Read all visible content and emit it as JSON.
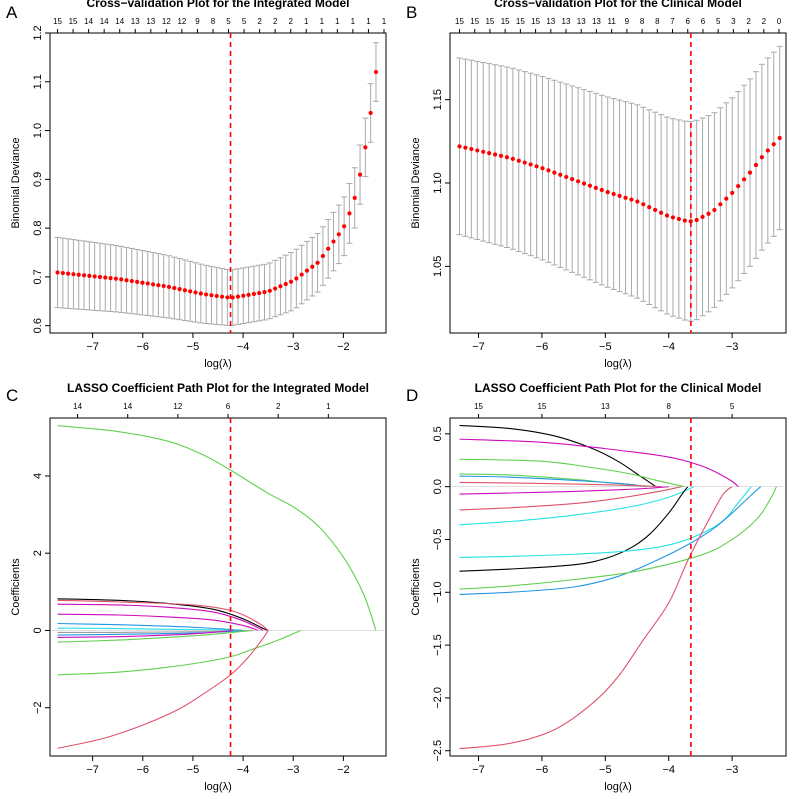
{
  "chart_data": [
    {
      "id": "A",
      "type": "line",
      "panel_label": "A",
      "title": "Cross−validation Plot for the Integrated Model",
      "xlabel": "log(λ)",
      "ylabel": "Binomial Deviance",
      "xlim": [
        -7.85,
        -1.15
      ],
      "ylim": [
        0.585,
        1.2
      ],
      "xticks": [
        -7,
        -6,
        -5,
        -4,
        -3,
        -2
      ],
      "xtick_labels": [
        "−7",
        "−6",
        "−5",
        "−4",
        "−3",
        "−2"
      ],
      "yticks": [
        0.6,
        0.7,
        0.8,
        0.9,
        1.0,
        1.1,
        1.2
      ],
      "ytick_labels": [
        "0.6",
        "0.7",
        "0.8",
        "0.9",
        "1.0",
        "1.1",
        "1.2"
      ],
      "top_axis_labels": [
        "15",
        "15",
        "14",
        "14",
        "14",
        "13",
        "13",
        "12",
        "12",
        "9",
        "8",
        "5",
        "5",
        "2",
        "2",
        "2",
        "1",
        "1",
        "1",
        "1",
        "1",
        "1"
      ],
      "top_axis_x": [
        -7.7,
        -7.39,
        -7.08,
        -6.77,
        -6.46,
        -6.15,
        -5.84,
        -5.53,
        -5.22,
        -4.91,
        -4.6,
        -4.29,
        -3.98,
        -3.67,
        -3.36,
        -3.05,
        -2.74,
        -2.43,
        -2.12,
        -1.81,
        -1.5,
        -1.19
      ],
      "vline": -4.25,
      "series": [
        {
          "name": "Binomial Deviance",
          "x_start": -7.7,
          "x_end": -1.35,
          "n": 61,
          "knots_x": [
            -7.7,
            -6.5,
            -5.5,
            -4.8,
            -4.25,
            -3.5,
            -3.0,
            -2.5,
            -2.0,
            -1.8,
            -1.6,
            -1.45,
            -1.35
          ],
          "knots_y": [
            0.709,
            0.696,
            0.68,
            0.665,
            0.657,
            0.67,
            0.692,
            0.73,
            0.8,
            0.85,
            0.94,
            1.04,
            1.12
          ],
          "err_knots_x": [
            -7.7,
            -6.5,
            -5.5,
            -4.8,
            -4.25,
            -3.5,
            -3.0,
            -2.5,
            -2.0,
            -1.8,
            -1.6,
            -1.45,
            -1.35
          ],
          "err_knots_v": [
            0.072,
            0.068,
            0.064,
            0.06,
            0.057,
            0.057,
            0.06,
            0.06,
            0.06,
            0.062,
            0.06,
            0.06,
            0.06
          ]
        }
      ]
    },
    {
      "id": "B",
      "type": "line",
      "panel_label": "B",
      "title": "Cross−validation Plot for the Clinical Model",
      "xlabel": "log(λ)",
      "ylabel": "Binomial Deviance",
      "xlim": [
        -7.45,
        -2.15
      ],
      "ylim": [
        1.01,
        1.19
      ],
      "xticks": [
        -7,
        -6,
        -5,
        -4,
        -3
      ],
      "xtick_labels": [
        "−7",
        "−6",
        "−5",
        "−4",
        "−3"
      ],
      "yticks": [
        1.05,
        1.1,
        1.15
      ],
      "ytick_labels": [
        "1.05",
        "1.10",
        "1.15"
      ],
      "top_axis_labels": [
        "15",
        "15",
        "15",
        "15",
        "15",
        "15",
        "13",
        "13",
        "13",
        "13",
        "11",
        "9",
        "8",
        "8",
        "7",
        "6",
        "6",
        "5",
        "3",
        "2",
        "2",
        "0"
      ],
      "top_axis_x": [
        -7.3,
        -7.06,
        -6.82,
        -6.58,
        -6.34,
        -6.1,
        -5.86,
        -5.62,
        -5.38,
        -5.14,
        -4.9,
        -4.66,
        -4.42,
        -4.18,
        -3.94,
        -3.7,
        -3.46,
        -3.22,
        -2.98,
        -2.74,
        -2.5,
        -2.26
      ],
      "vline": -3.65,
      "series": [
        {
          "name": "Binomial Deviance",
          "x_start": -7.3,
          "x_end": -2.25,
          "n": 55,
          "knots_x": [
            -7.3,
            -6.5,
            -6.0,
            -5.5,
            -5.0,
            -4.5,
            -4.0,
            -3.7,
            -3.6,
            -3.3,
            -3.0,
            -2.7,
            -2.5,
            -2.25
          ],
          "knots_y": [
            1.122,
            1.115,
            1.109,
            1.102,
            1.095,
            1.089,
            1.08,
            1.077,
            1.077,
            1.083,
            1.094,
            1.107,
            1.117,
            1.127
          ],
          "err_knots_x": [
            -7.3,
            -6.0,
            -4.5,
            -3.6,
            -3.0,
            -2.25
          ],
          "err_knots_v": [
            0.053,
            0.055,
            0.058,
            0.06,
            0.057,
            0.055
          ]
        }
      ]
    },
    {
      "id": "C",
      "type": "line",
      "panel_label": "C",
      "title": "LASSO Coefficient Path Plot for the Integrated Model",
      "xlabel": "log(λ)",
      "ylabel": "Coefficients",
      "xlim": [
        -7.85,
        -1.15
      ],
      "ylim": [
        -3.25,
        5.5
      ],
      "xticks": [
        -7,
        -6,
        -5,
        -4,
        -3,
        -2
      ],
      "xtick_labels": [
        "−7",
        "−6",
        "−5",
        "−4",
        "−3",
        "−2"
      ],
      "yticks": [
        -2,
        0,
        2,
        4
      ],
      "ytick_labels": [
        "−2",
        "0",
        "2",
        "4"
      ],
      "top_axis_labels": [
        "14",
        "14",
        "12",
        "6",
        "2",
        "1"
      ],
      "top_axis_x": [
        -7.3,
        -6.3,
        -5.3,
        -4.3,
        -3.3,
        -2.3
      ],
      "vline": -4.25,
      "series": [
        {
          "name": "path-1",
          "color": "#61D04F",
          "x": [
            -7.7,
            -6.5,
            -5.5,
            -4.8,
            -4.25,
            -3.5,
            -3.0,
            -2.5,
            -2.0,
            -1.6,
            -1.35
          ],
          "y": [
            5.3,
            5.15,
            4.9,
            4.55,
            4.15,
            3.55,
            3.2,
            2.7,
            1.9,
            0.95,
            0.0
          ]
        },
        {
          "name": "path-2",
          "color": "#000000",
          "x": [
            -7.7,
            -6.5,
            -5.5,
            -4.6,
            -4.0,
            -3.6,
            -3.5
          ],
          "y": [
            0.82,
            0.78,
            0.7,
            0.55,
            0.3,
            0.05,
            0.0
          ]
        },
        {
          "name": "path-3",
          "color": "#DF536B",
          "x": [
            -7.7,
            -6.5,
            -5.0,
            -4.2,
            -3.7,
            -3.5
          ],
          "y": [
            0.78,
            0.74,
            0.66,
            0.5,
            0.2,
            0.0
          ]
        },
        {
          "name": "path-4",
          "color": "#CD0BBC",
          "x": [
            -7.7,
            -6.5,
            -5.5,
            -4.6,
            -4.0,
            -3.6
          ],
          "y": [
            0.68,
            0.66,
            0.6,
            0.48,
            0.25,
            0.0
          ]
        },
        {
          "name": "path-5",
          "color": "#CD0BBC",
          "x": [
            -7.7,
            -6.5,
            -5.5,
            -4.6,
            -4.0,
            -3.7
          ],
          "y": [
            0.42,
            0.4,
            0.35,
            0.27,
            0.13,
            0.0
          ]
        },
        {
          "name": "path-6",
          "color": "#2297E6",
          "x": [
            -7.7,
            -6.5,
            -5.5,
            -4.8,
            -4.3,
            -4.0
          ],
          "y": [
            0.18,
            0.15,
            0.11,
            0.07,
            0.03,
            0.0
          ]
        },
        {
          "name": "path-7",
          "color": "#28E2E5",
          "x": [
            -7.7,
            -6.5,
            -5.5,
            -4.8,
            -4.3,
            -4.1
          ],
          "y": [
            0.06,
            0.05,
            0.03,
            0.02,
            0.01,
            0.0
          ]
        },
        {
          "name": "path-8",
          "color": "#9E9E9E",
          "x": [
            -7.7,
            -6.5,
            -5.5,
            -4.8,
            -4.2,
            -3.9
          ],
          "y": [
            -0.05,
            -0.05,
            -0.04,
            -0.03,
            -0.02,
            0.0
          ]
        },
        {
          "name": "path-9",
          "color": "#2297E6",
          "x": [
            -7.7,
            -6.5,
            -5.5,
            -4.8,
            -4.3,
            -4.0
          ],
          "y": [
            -0.12,
            -0.1,
            -0.08,
            -0.06,
            -0.03,
            0.0
          ]
        },
        {
          "name": "path-10",
          "color": "#CD0BBC",
          "x": [
            -7.7,
            -6.5,
            -5.5,
            -4.8,
            -4.2
          ],
          "y": [
            -0.18,
            -0.16,
            -0.12,
            -0.07,
            0.0
          ]
        },
        {
          "name": "path-11",
          "color": "#61D04F",
          "x": [
            -7.7,
            -6.5,
            -5.5,
            -4.8,
            -4.2,
            -3.8
          ],
          "y": [
            -0.3,
            -0.25,
            -0.18,
            -0.12,
            -0.05,
            0.0
          ]
        },
        {
          "name": "path-12",
          "color": "#61D04F",
          "x": [
            -7.7,
            -6.5,
            -5.5,
            -4.8,
            -4.25,
            -3.8,
            -3.3,
            -2.85
          ],
          "y": [
            -1.15,
            -1.08,
            -0.95,
            -0.82,
            -0.68,
            -0.48,
            -0.25,
            0.0
          ]
        },
        {
          "name": "path-13",
          "color": "#DF536B",
          "x": [
            -7.7,
            -6.8,
            -6.0,
            -5.3,
            -4.8,
            -4.25,
            -3.9,
            -3.6,
            -3.5
          ],
          "y": [
            -3.05,
            -2.8,
            -2.45,
            -2.05,
            -1.65,
            -1.15,
            -0.7,
            -0.2,
            0.0
          ]
        }
      ]
    },
    {
      "id": "D",
      "type": "line",
      "panel_label": "D",
      "title": "LASSO Coefficient Path Plot for the Clinical Model",
      "xlabel": "log(λ)",
      "ylabel": "Coefficients",
      "xlim": [
        -7.45,
        -2.15
      ],
      "ylim": [
        -2.55,
        0.65
      ],
      "xticks": [
        -7,
        -6,
        -5,
        -4,
        -3
      ],
      "xtick_labels": [
        "−7",
        "−6",
        "−5",
        "−4",
        "−3"
      ],
      "yticks": [
        -2.5,
        -2.0,
        -1.5,
        -1.0,
        -0.5,
        0.0,
        0.5
      ],
      "ytick_labels": [
        "−2.5",
        "−2.0",
        "−1.5",
        "−1.0",
        "−0.5",
        "0.0",
        "0.5"
      ],
      "top_axis_labels": [
        "15",
        "15",
        "13",
        "8",
        "5"
      ],
      "top_axis_x": [
        -7.0,
        -6.0,
        -5.0,
        -4.0,
        -3.0
      ],
      "vline": -3.65,
      "series": [
        {
          "name": "path-1",
          "color": "#000000",
          "x": [
            -7.3,
            -6.5,
            -5.8,
            -5.2,
            -4.8,
            -4.5,
            -4.3,
            -4.2
          ],
          "y": [
            0.58,
            0.55,
            0.48,
            0.36,
            0.24,
            0.12,
            0.04,
            0.0
          ]
        },
        {
          "name": "path-2",
          "color": "#CD0BBC",
          "x": [
            -7.3,
            -6.0,
            -5.0,
            -4.0,
            -3.5,
            -3.2,
            -3.0,
            -2.9
          ],
          "y": [
            0.45,
            0.42,
            0.36,
            0.28,
            0.2,
            0.12,
            0.05,
            0.0
          ]
        },
        {
          "name": "path-3",
          "color": "#61D04F",
          "x": [
            -7.3,
            -6.0,
            -5.2,
            -4.6,
            -4.2,
            -3.9,
            -3.75
          ],
          "y": [
            0.26,
            0.24,
            0.18,
            0.12,
            0.06,
            0.02,
            0.0
          ]
        },
        {
          "name": "path-4",
          "color": "#61D04F",
          "x": [
            -7.3,
            -6.5,
            -5.5,
            -5.0,
            -4.6,
            -4.35
          ],
          "y": [
            0.12,
            0.11,
            0.07,
            0.04,
            0.02,
            0.0
          ]
        },
        {
          "name": "path-5",
          "color": "#2297E6",
          "x": [
            -7.3,
            -6.5,
            -5.5,
            -5.0,
            -4.6,
            -4.35
          ],
          "y": [
            0.1,
            0.09,
            0.06,
            0.04,
            0.02,
            0.0
          ]
        },
        {
          "name": "path-6",
          "color": "#DF536B",
          "x": [
            -7.3,
            -6.5,
            -5.5,
            -4.8,
            -4.4,
            -4.1
          ],
          "y": [
            0.04,
            0.035,
            0.025,
            0.015,
            0.007,
            0.0
          ]
        },
        {
          "name": "path-7",
          "color": "#CD0BBC",
          "x": [
            -7.3,
            -6.5,
            -5.5,
            -4.8,
            -4.3,
            -4.0
          ],
          "y": [
            -0.07,
            -0.06,
            -0.045,
            -0.03,
            -0.015,
            0.0
          ]
        },
        {
          "name": "path-8",
          "color": "#DF536B",
          "x": [
            -7.3,
            -6.5,
            -5.5,
            -4.8,
            -4.2,
            -3.8
          ],
          "y": [
            -0.22,
            -0.2,
            -0.16,
            -0.11,
            -0.05,
            0.0
          ]
        },
        {
          "name": "path-9",
          "color": "#28E2E5",
          "x": [
            -7.3,
            -6.5,
            -5.5,
            -4.6,
            -4.0,
            -3.6
          ],
          "y": [
            -0.36,
            -0.33,
            -0.27,
            -0.19,
            -0.1,
            0.0
          ]
        },
        {
          "name": "path-10",
          "color": "#000000",
          "x": [
            -7.3,
            -6.5,
            -5.5,
            -5.0,
            -4.6,
            -4.3,
            -4.0,
            -3.8,
            -3.7
          ],
          "y": [
            -0.8,
            -0.78,
            -0.74,
            -0.68,
            -0.58,
            -0.45,
            -0.25,
            -0.08,
            0.0
          ]
        },
        {
          "name": "path-11",
          "color": "#28E2E5",
          "x": [
            -7.3,
            -6.5,
            -5.5,
            -4.5,
            -3.8,
            -3.2,
            -2.9,
            -2.7
          ],
          "y": [
            -0.67,
            -0.66,
            -0.64,
            -0.6,
            -0.52,
            -0.35,
            -0.15,
            0.0
          ]
        },
        {
          "name": "path-12",
          "color": "#2297E6",
          "x": [
            -7.3,
            -6.5,
            -5.5,
            -4.8,
            -4.2,
            -3.7,
            -3.3,
            -3.0,
            -2.7,
            -2.55
          ],
          "y": [
            -1.02,
            -1.0,
            -0.95,
            -0.85,
            -0.7,
            -0.55,
            -0.4,
            -0.25,
            -0.08,
            0.0
          ]
        },
        {
          "name": "path-13",
          "color": "#61D04F",
          "x": [
            -7.3,
            -6.5,
            -5.5,
            -4.5,
            -3.5,
            -3.0,
            -2.6,
            -2.4,
            -2.3
          ],
          "y": [
            -0.97,
            -0.94,
            -0.88,
            -0.8,
            -0.65,
            -0.5,
            -0.3,
            -0.12,
            0.0
          ]
        },
        {
          "name": "path-14",
          "color": "#DF536B",
          "x": [
            -7.3,
            -6.5,
            -5.8,
            -5.2,
            -4.8,
            -4.4,
            -4.0,
            -3.7,
            -3.4,
            -3.15,
            -3.0
          ],
          "y": [
            -2.48,
            -2.43,
            -2.3,
            -2.05,
            -1.8,
            -1.45,
            -1.1,
            -0.7,
            -0.35,
            -0.08,
            0.0
          ]
        }
      ]
    }
  ]
}
